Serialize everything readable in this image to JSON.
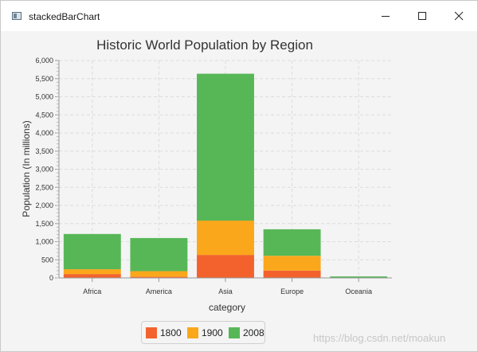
{
  "window": {
    "title": "stackedBarChart",
    "controls": {
      "minimize": "minimize-icon",
      "maximize": "maximize-icon",
      "close": "close-icon"
    },
    "watermark": "https://blog.csdn.net/moakun"
  },
  "colors": {
    "series_1800": "#f3622d",
    "series_1900": "#fba71b",
    "series_2008": "#57b757",
    "plot_background": "#f4f4f4",
    "grid": "#dcdcdc"
  },
  "chart_data": {
    "type": "bar",
    "stacked": true,
    "title": "Historic World Population by Region",
    "xlabel": "category",
    "ylabel": "Population (In millions)",
    "categories": [
      "Africa",
      "America",
      "Asia",
      "Europe",
      "Oceania"
    ],
    "series": [
      {
        "name": "1800",
        "values": [
          107,
          31,
          635,
          203,
          2
        ]
      },
      {
        "name": "1900",
        "values": [
          133,
          156,
          947,
          408,
          6
        ]
      },
      {
        "name": "2008",
        "values": [
          973,
          914,
          4054,
          732,
          34
        ]
      }
    ],
    "ylim": [
      0,
      6000
    ],
    "yticks": [
      "0",
      "500",
      "1,000",
      "1,500",
      "2,000",
      "2,500",
      "3,000",
      "3,500",
      "4,000",
      "4,500",
      "5,000",
      "5,500",
      "6,000"
    ],
    "grid": true,
    "legend": "bottom-center"
  }
}
